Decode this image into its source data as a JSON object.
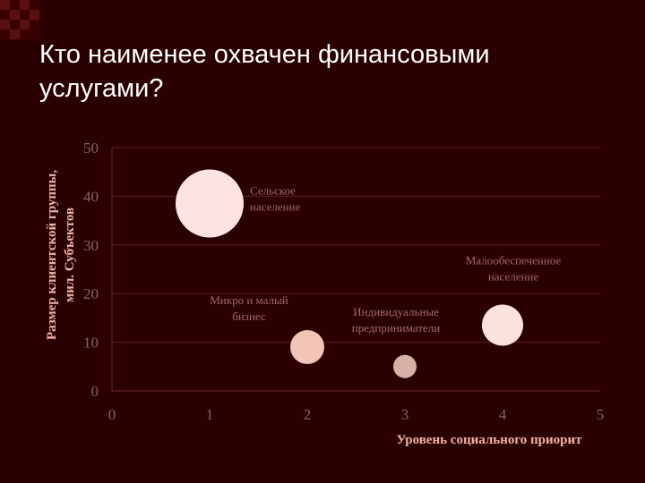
{
  "slide": {
    "title": "Кто наименее охвачен финансовыми услугами?"
  },
  "chart_data": {
    "type": "bubble",
    "xlabel": "Уровень социального приорит",
    "ylabel_line1": "Размер клиентской группы,",
    "ylabel_line2": "мил. Субъектов",
    "xlim": [
      0,
      5
    ],
    "ylim": [
      0,
      50
    ],
    "x_ticks": [
      0,
      1,
      2,
      3,
      4,
      5
    ],
    "y_ticks": [
      0,
      10,
      20,
      30,
      40,
      50
    ],
    "grid": "horizontal",
    "points": [
      {
        "label": "Сельское население",
        "label_lines": [
          "Сельское",
          "население"
        ],
        "x": 1.0,
        "y": 38.5,
        "size": 38,
        "color": "#fde3e1"
      },
      {
        "label": "Микро и малый бизнес",
        "label_lines": [
          "Микро и малый",
          "бизнес"
        ],
        "x": 2.0,
        "y": 9.0,
        "size": 19,
        "color": "#f1c4b6"
      },
      {
        "label": "Индивидуальные предприниматели",
        "label_lines": [
          "Индивидуальные",
          "предприниматели"
        ],
        "x": 3.0,
        "y": 5.0,
        "size": 13,
        "color": "#d9b1a5"
      },
      {
        "label": "Малообеспеченное население",
        "label_lines": [
          "Малообеспеченное",
          "население"
        ],
        "x": 4.0,
        "y": 13.5,
        "size": 23,
        "color": "#fbe2dc"
      }
    ]
  }
}
